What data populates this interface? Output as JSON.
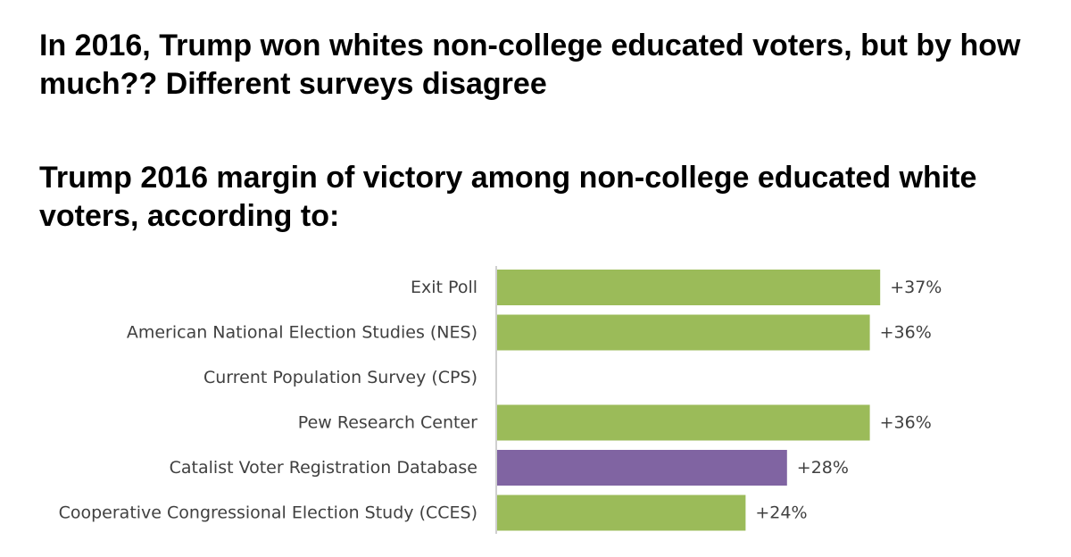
{
  "headline": "In 2016, Trump won whites non-college educated voters, but by how much?? Different surveys disagree",
  "chart_data": {
    "type": "bar",
    "orientation": "horizontal",
    "title": "Trump 2016 margin of victory among non-college educated white voters, according to:",
    "categories": [
      "Exit Poll",
      "American National Election Studies (NES)",
      "Current Population Survey (CPS)",
      "Pew Research Center",
      "Catalist Voter Registration Database",
      "Cooperative Congressional Election Study (CCES)"
    ],
    "values": [
      37,
      36,
      null,
      36,
      28,
      24
    ],
    "value_labels": [
      "+37%",
      "+36%",
      "",
      "+36%",
      "+28%",
      "+24%"
    ],
    "colors": [
      "#9bbb59",
      "#9bbb59",
      "#9bbb59",
      "#9bbb59",
      "#8064a2",
      "#9bbb59"
    ],
    "xlim": [
      0,
      40
    ],
    "grid": false,
    "legend": "none"
  }
}
